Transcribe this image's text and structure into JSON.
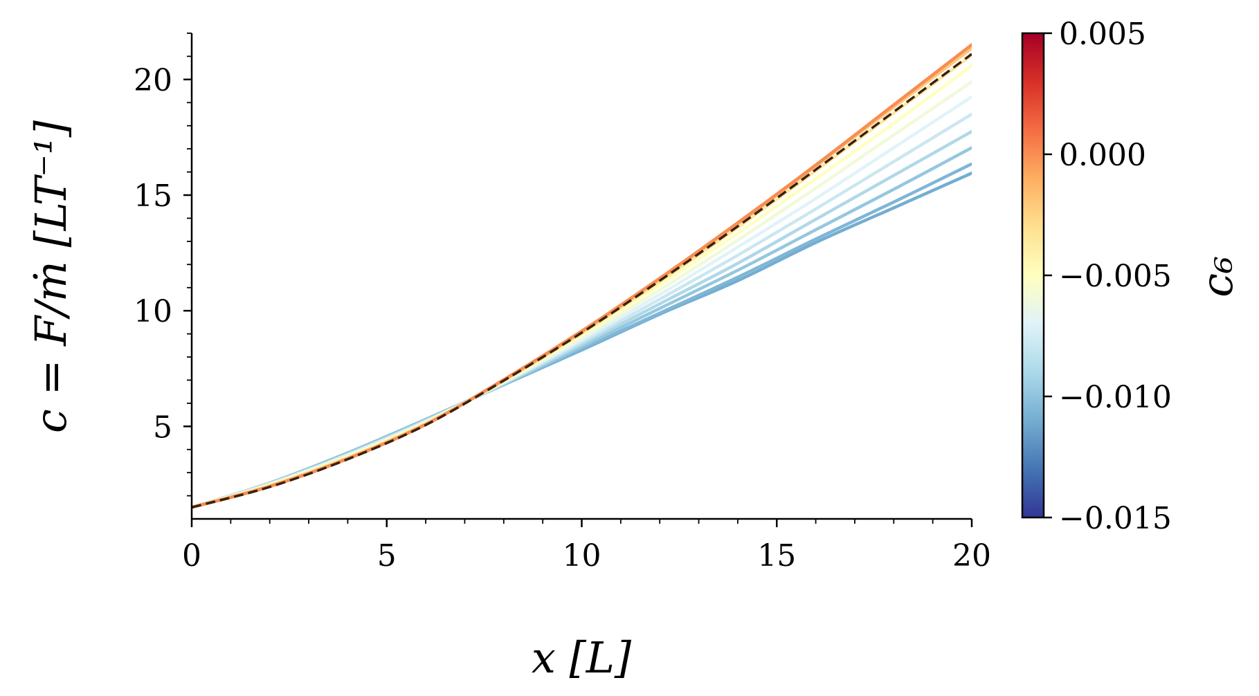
{
  "chart_data": {
    "type": "line",
    "xlabel": "x [L]",
    "ylabel": "c = F/ṁ [LT⁻¹]",
    "xlim": [
      0,
      20
    ],
    "ylim": [
      1,
      22
    ],
    "xticks": [
      "0",
      "5",
      "10",
      "15",
      "20"
    ],
    "yticks": [
      "5",
      "10",
      "15",
      "20"
    ],
    "grid": false,
    "colorbar": {
      "label": "c₆",
      "range": [
        -0.015,
        0.005
      ],
      "ticks": [
        "0.005",
        "0.000",
        "−0.005",
        "−0.010",
        "−0.015"
      ],
      "colormap": "RdYlBu_r",
      "colors": [
        "#313695",
        "#4575b4",
        "#74add1",
        "#abd9e9",
        "#e0f3f8",
        "#ffffbf",
        "#fee090",
        "#fdae61",
        "#f46d43",
        "#d73027",
        "#a50026"
      ]
    },
    "series": [
      {
        "c6": -0.01,
        "color": "#74add1",
        "x": [
          0,
          2,
          4,
          6,
          8,
          10,
          12,
          14,
          16,
          18,
          20
        ],
        "y": [
          1.5,
          2.55,
          3.85,
          5.3,
          6.8,
          8.3,
          9.85,
          11.3,
          12.95,
          14.45,
          15.95
        ]
      },
      {
        "c6": -0.0095,
        "color": "#7fb6d6",
        "x": [
          0,
          2,
          4,
          6,
          8,
          10,
          12,
          14,
          16,
          18,
          20
        ],
        "y": [
          1.5,
          2.55,
          3.85,
          5.3,
          6.8,
          8.35,
          9.9,
          11.45,
          13.1,
          14.7,
          16.35
        ]
      },
      {
        "c6": -0.009,
        "color": "#95c7df",
        "x": [
          0,
          2,
          4,
          6,
          8,
          10,
          12,
          14,
          16,
          18,
          20
        ],
        "y": [
          1.5,
          2.54,
          3.83,
          5.28,
          6.82,
          8.45,
          10.1,
          11.75,
          13.5,
          15.25,
          17.05
        ]
      },
      {
        "c6": -0.0085,
        "color": "#afd8e8",
        "x": [
          0,
          2,
          4,
          6,
          8,
          10,
          12,
          14,
          16,
          18,
          20
        ],
        "y": [
          1.5,
          2.53,
          3.8,
          5.25,
          6.85,
          8.55,
          10.3,
          12.05,
          13.95,
          15.85,
          17.75
        ]
      },
      {
        "c6": -0.008,
        "color": "#cbe7f0",
        "x": [
          0,
          2,
          4,
          6,
          8,
          10,
          12,
          14,
          16,
          18,
          20
        ],
        "y": [
          1.5,
          2.52,
          3.78,
          5.23,
          6.88,
          8.65,
          10.5,
          12.4,
          14.4,
          16.45,
          18.5
        ]
      },
      {
        "c6": -0.0075,
        "color": "#e0f3f8",
        "x": [
          0,
          2,
          4,
          6,
          8,
          10,
          12,
          14,
          16,
          18,
          20
        ],
        "y": [
          1.5,
          2.5,
          3.75,
          5.2,
          6.9,
          8.75,
          10.7,
          12.75,
          14.85,
          17.05,
          19.25
        ]
      },
      {
        "c6": -0.007,
        "color": "#f2f9da",
        "x": [
          0,
          2,
          4,
          6,
          8,
          10,
          12,
          14,
          16,
          18,
          20
        ],
        "y": [
          1.5,
          2.48,
          3.72,
          5.18,
          6.92,
          8.85,
          10.9,
          13.05,
          15.3,
          17.6,
          19.9
        ]
      },
      {
        "c6": -0.0065,
        "color": "#ffffbf",
        "x": [
          0,
          2,
          4,
          6,
          8,
          10,
          12,
          14,
          16,
          18,
          20
        ],
        "y": [
          1.5,
          2.46,
          3.68,
          5.15,
          6.95,
          8.95,
          11.1,
          13.35,
          15.7,
          18.1,
          20.6
        ]
      },
      {
        "c6": -0.006,
        "color": "#fee8a0",
        "x": [
          0,
          2,
          4,
          6,
          8,
          10,
          12,
          14,
          16,
          18,
          20
        ],
        "y": [
          1.5,
          2.44,
          3.65,
          5.12,
          6.97,
          9.02,
          11.25,
          13.6,
          16.05,
          18.55,
          21.05
        ]
      },
      {
        "c6": -0.005,
        "color": "#fdc879",
        "x": [
          0,
          2,
          4,
          6,
          8,
          10,
          12,
          14,
          16,
          18,
          20
        ],
        "y": [
          1.5,
          2.42,
          3.62,
          5.1,
          7.0,
          9.08,
          11.35,
          13.75,
          16.25,
          18.8,
          21.35
        ]
      },
      {
        "c6": -0.003,
        "color": "#fdae61",
        "x": [
          0,
          2,
          4,
          6,
          8,
          10,
          12,
          14,
          16,
          18,
          20
        ],
        "y": [
          1.5,
          2.4,
          3.6,
          5.08,
          7.02,
          9.12,
          11.4,
          13.8,
          16.3,
          18.9,
          21.5
        ]
      },
      {
        "c6": -0.001,
        "color": "#f88d52",
        "x": [
          0,
          2,
          4,
          6,
          8,
          10,
          12,
          14,
          16,
          18,
          20
        ],
        "y": [
          1.5,
          2.4,
          3.6,
          5.08,
          7.02,
          9.12,
          11.4,
          13.8,
          16.3,
          18.9,
          21.5
        ]
      }
    ],
    "reference": {
      "color": "#3a2010",
      "style": "dashed",
      "x": [
        0,
        2,
        4,
        6,
        8,
        10,
        12,
        14,
        16,
        18,
        20
      ],
      "y": [
        1.5,
        2.38,
        3.58,
        5.06,
        6.98,
        9.05,
        11.3,
        13.65,
        16.1,
        18.6,
        21.1
      ]
    }
  }
}
